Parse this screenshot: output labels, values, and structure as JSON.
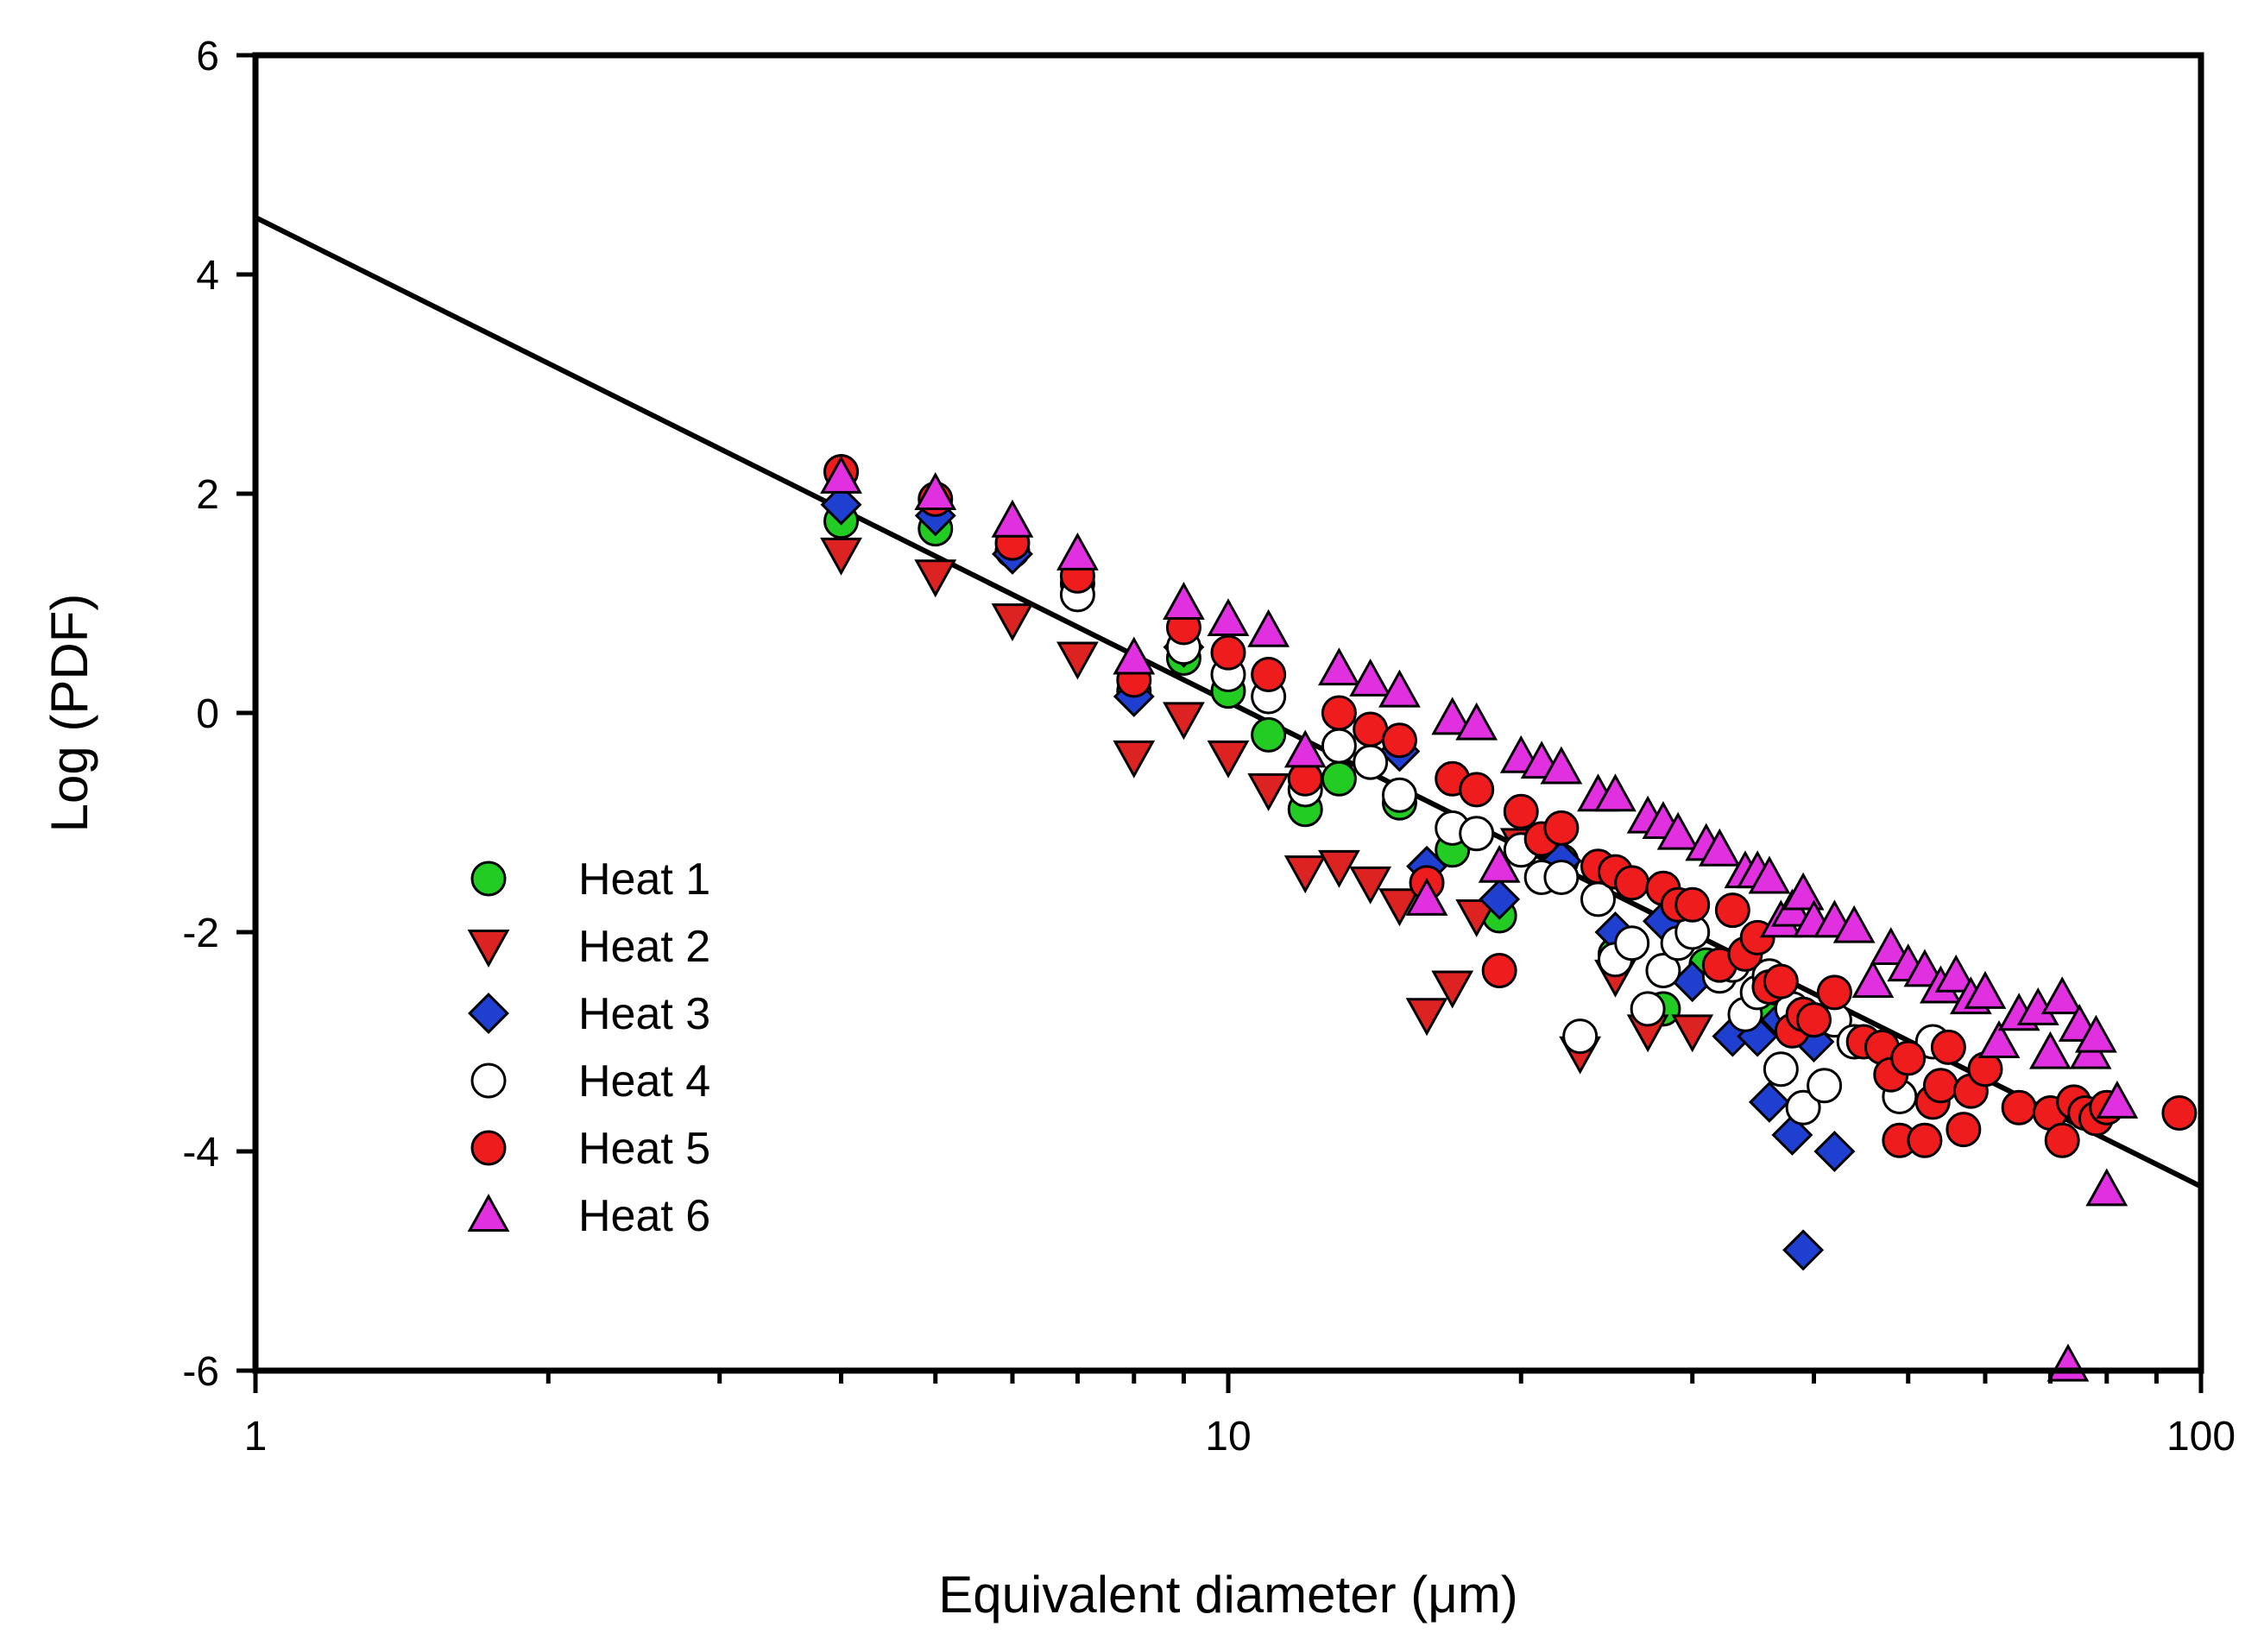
{
  "chart_data": {
    "type": "scatter",
    "title": "",
    "xlabel": "Equivalent diameter (μm)",
    "ylabel": "Log (PDF)",
    "xscale": "log",
    "xlim": [
      1,
      100
    ],
    "ylim": [
      -6,
      6
    ],
    "x_ticks": [
      1,
      10,
      100
    ],
    "x_tick_labels": [
      "1",
      "10",
      "100"
    ],
    "y_ticks": [
      -6,
      -4,
      -2,
      0,
      2,
      4,
      6
    ],
    "y_tick_labels": [
      "-6",
      "-4",
      "-2",
      "0",
      "2",
      "4",
      "6"
    ],
    "grid": false,
    "legend_position": "lower-left",
    "fit_line": {
      "name": "fit",
      "color": "#000000",
      "x": [
        1,
        100
      ],
      "y": [
        4.52,
        -4.32
      ]
    },
    "series": [
      {
        "name": "Heat 1",
        "marker": "circle",
        "color": "#22cc22",
        "x": [
          4,
          5,
          6,
          7,
          8,
          9,
          10,
          11,
          12,
          13,
          15,
          17,
          19,
          22,
          25,
          28,
          31,
          36
        ],
        "y": [
          1.75,
          1.68,
          1.48,
          1.18,
          0.2,
          0.5,
          0.2,
          -0.2,
          -0.88,
          -0.6,
          -0.82,
          -1.25,
          -1.85,
          -1.35,
          -2.2,
          -2.7,
          -2.3,
          -2.8
        ]
      },
      {
        "name": "Heat 2",
        "marker": "triangle-down",
        "color": "#dd2222",
        "x": [
          4,
          5,
          6,
          7,
          8,
          9,
          10,
          11,
          12,
          13,
          14,
          15,
          16,
          17,
          18,
          20,
          23,
          25,
          27,
          30
        ],
        "y": [
          1.45,
          1.25,
          0.85,
          0.5,
          -0.4,
          -0.05,
          -0.4,
          -0.7,
          -1.45,
          -1.4,
          -1.55,
          -1.75,
          -2.75,
          -2.5,
          -1.85,
          -1.2,
          -3.1,
          -2.4,
          -2.9,
          -2.9
        ]
      },
      {
        "name": "Heat 3",
        "marker": "diamond",
        "color": "#1f3fd0",
        "x": [
          4,
          5,
          6,
          8,
          9,
          15,
          16,
          19,
          22,
          25,
          28,
          30,
          33,
          35,
          36,
          37,
          38,
          39,
          40,
          42
        ],
        "y": [
          1.9,
          1.8,
          1.45,
          0.15,
          0.6,
          -0.35,
          -1.4,
          -1.7,
          -1.35,
          -2.0,
          -1.9,
          -2.45,
          -2.95,
          -2.95,
          -3.55,
          -2.8,
          -3.85,
          -4.9,
          -3.0,
          -4.0
        ]
      },
      {
        "name": "Heat 4",
        "marker": "circle",
        "color": "#ffffff",
        "x": [
          4,
          7,
          9,
          10,
          11,
          12,
          13,
          14,
          15,
          17,
          18,
          20,
          21,
          22,
          23,
          24,
          25,
          26,
          27,
          28,
          29,
          30,
          32,
          33,
          34,
          35,
          36,
          37,
          38,
          39,
          40,
          41,
          42,
          44,
          49,
          53
        ],
        "y": [
          2.2,
          1.08,
          0.6,
          0.35,
          0.15,
          -0.7,
          -0.3,
          -0.45,
          -0.75,
          -1.05,
          -1.1,
          -1.25,
          -1.5,
          -1.5,
          -2.95,
          -1.7,
          -2.25,
          -2.1,
          -2.7,
          -2.35,
          -2.1,
          -2.0,
          -2.4,
          -2.3,
          -2.75,
          -2.55,
          -2.4,
          -3.25,
          -2.7,
          -3.6,
          -2.8,
          -3.4,
          -2.8,
          -3.0,
          -3.5,
          -3.0
        ]
      },
      {
        "name": "Heat 5",
        "marker": "circle",
        "color": "#ee1c1c",
        "x": [
          4,
          5,
          6,
          7,
          8,
          9,
          10,
          11,
          12,
          13,
          14,
          15,
          16,
          17,
          18,
          19,
          20,
          21,
          22,
          24,
          25,
          26,
          28,
          29,
          30,
          32,
          33,
          34,
          35,
          36,
          37,
          38,
          39,
          40,
          42,
          45,
          47,
          48,
          49,
          50,
          52,
          53,
          54,
          55,
          57,
          58,
          60,
          65,
          70,
          72,
          74,
          76,
          78,
          80,
          95
        ],
        "y": [
          2.2,
          1.95,
          1.55,
          1.25,
          0.3,
          0.78,
          0.55,
          0.35,
          -0.6,
          0.0,
          -0.15,
          -0.25,
          -1.55,
          -0.6,
          -0.7,
          -2.35,
          -0.9,
          -1.15,
          -1.05,
          -1.4,
          -1.45,
          -1.55,
          -1.6,
          -1.75,
          -1.75,
          -2.3,
          -1.8,
          -2.2,
          -2.05,
          -2.5,
          -2.45,
          -2.9,
          -2.75,
          -2.8,
          -2.55,
          -3.0,
          -3.05,
          -3.3,
          -3.9,
          -3.15,
          -3.9,
          -3.55,
          -3.4,
          -3.05,
          -3.8,
          -3.45,
          -3.25,
          -3.6,
          -3.65,
          -3.9,
          -3.55,
          -3.65,
          -3.7,
          -3.6,
          -3.65
        ]
      },
      {
        "name": "Heat 6",
        "marker": "triangle-up",
        "color": "#e030e0",
        "x": [
          4,
          5,
          6,
          7,
          8,
          9,
          10,
          11,
          12,
          13,
          14,
          15,
          16,
          17,
          18,
          19,
          20,
          21,
          22,
          24,
          25,
          27,
          28,
          29,
          31,
          32,
          34,
          35,
          36,
          37,
          38,
          39,
          40,
          42,
          44,
          46,
          48,
          50,
          52,
          54,
          56,
          58,
          60,
          62,
          65,
          68,
          70,
          72,
          73,
          75,
          77,
          78,
          80,
          82
        ],
        "y": [
          2.15,
          2.0,
          1.75,
          1.45,
          0.5,
          1.0,
          0.85,
          0.75,
          -0.35,
          0.4,
          0.3,
          0.2,
          -1.7,
          -0.05,
          -0.1,
          -1.4,
          -0.4,
          -0.45,
          -0.5,
          -0.75,
          -0.75,
          -0.95,
          -1.0,
          -1.1,
          -1.2,
          -1.25,
          -1.45,
          -1.45,
          -1.5,
          -1.9,
          -1.8,
          -1.65,
          -1.9,
          -1.9,
          -1.95,
          -2.45,
          -2.15,
          -2.3,
          -2.35,
          -2.5,
          -2.4,
          -2.6,
          -2.55,
          -3.0,
          -2.75,
          -2.7,
          -3.1,
          -2.6,
          -5.95,
          -2.85,
          -3.1,
          -2.95,
          -4.35,
          -3.55
        ]
      }
    ]
  }
}
